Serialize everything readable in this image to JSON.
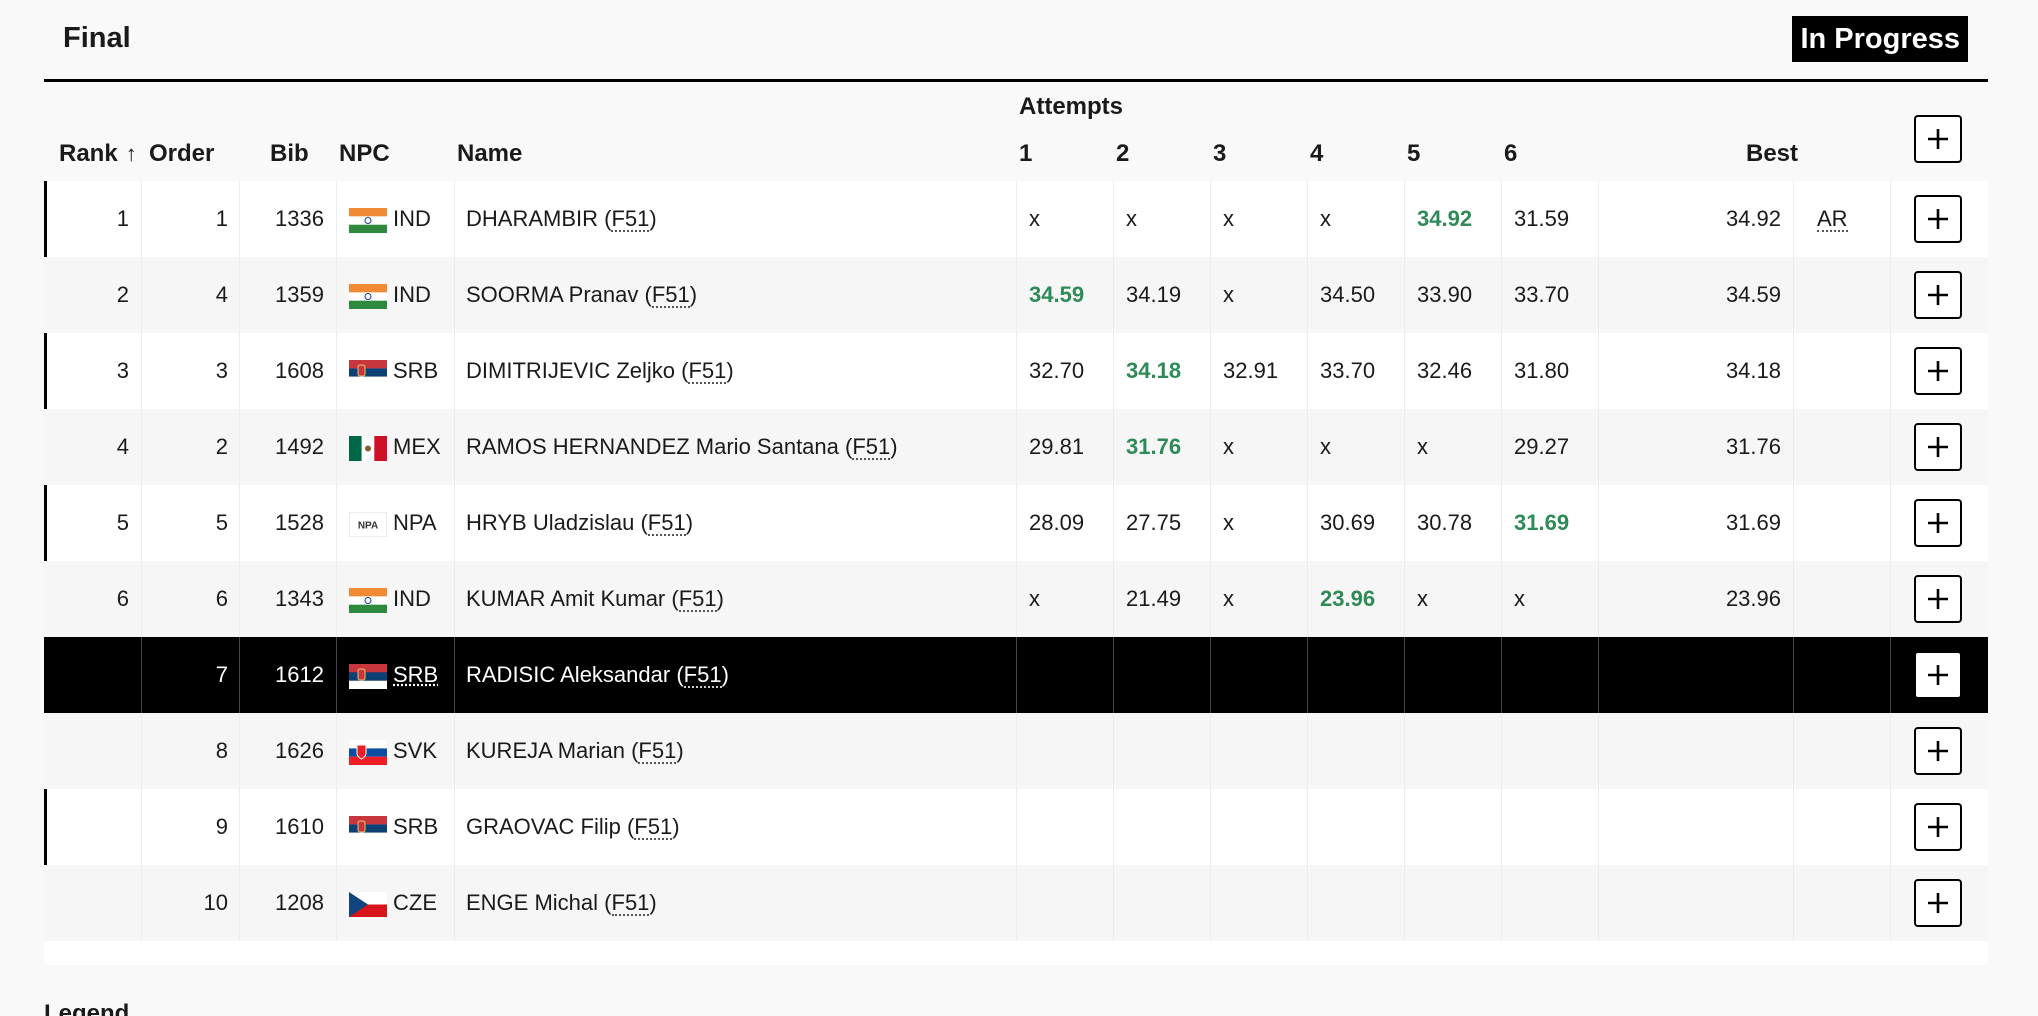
{
  "event": {
    "round": "Final",
    "status": "In Progress"
  },
  "columns": {
    "attempts_group": "Attempts",
    "rank": "Rank",
    "order": "Order",
    "bib": "Bib",
    "npc": "NPC",
    "name": "Name",
    "a1": "1",
    "a2": "2",
    "a3": "3",
    "a4": "4",
    "a5": "5",
    "a6": "6",
    "best": "Best"
  },
  "rows": [
    {
      "rank": "1",
      "order": "1",
      "bib": "1336",
      "flag": "IND",
      "npc": "IND",
      "name": "DHARAMBIR",
      "class": "F51",
      "attempts": [
        "x",
        "x",
        "x",
        "x",
        "34.92",
        "31.59"
      ],
      "best_index": 4,
      "best": "34.92",
      "record": "AR"
    },
    {
      "rank": "2",
      "order": "4",
      "bib": "1359",
      "flag": "IND",
      "npc": "IND",
      "name": "SOORMA Pranav",
      "class": "F51",
      "attempts": [
        "34.59",
        "34.19",
        "x",
        "34.50",
        "33.90",
        "33.70"
      ],
      "best_index": 0,
      "best": "34.59",
      "record": ""
    },
    {
      "rank": "3",
      "order": "3",
      "bib": "1608",
      "flag": "SRB",
      "npc": "SRB",
      "name": "DIMITRIJEVIC Zeljko",
      "class": "F51",
      "attempts": [
        "32.70",
        "34.18",
        "32.91",
        "33.70",
        "32.46",
        "31.80"
      ],
      "best_index": 1,
      "best": "34.18",
      "record": ""
    },
    {
      "rank": "4",
      "order": "2",
      "bib": "1492",
      "flag": "MEX",
      "npc": "MEX",
      "name": "RAMOS HERNANDEZ Mario Santana",
      "class": "F51",
      "attempts": [
        "29.81",
        "31.76",
        "x",
        "x",
        "x",
        "29.27"
      ],
      "best_index": 1,
      "best": "31.76",
      "record": ""
    },
    {
      "rank": "5",
      "order": "5",
      "bib": "1528",
      "flag": "NPA",
      "flag_text": "NPA",
      "npc": "NPA",
      "name": "HRYB Uladzislau",
      "class": "F51",
      "attempts": [
        "28.09",
        "27.75",
        "x",
        "30.69",
        "30.78",
        "31.69"
      ],
      "best_index": 5,
      "best": "31.69",
      "record": ""
    },
    {
      "rank": "6",
      "order": "6",
      "bib": "1343",
      "flag": "IND",
      "npc": "IND",
      "name": "KUMAR Amit Kumar",
      "class": "F51",
      "attempts": [
        "x",
        "21.49",
        "x",
        "23.96",
        "x",
        "x"
      ],
      "best_index": 3,
      "best": "23.96",
      "record": ""
    },
    {
      "rank": "",
      "order": "7",
      "bib": "1612",
      "flag": "SRB",
      "npc": "SRB",
      "name": "RADISIC Aleksandar",
      "class": "F51",
      "attempts": [
        "",
        "",
        "",
        "",
        "",
        ""
      ],
      "best_index": -1,
      "best": "",
      "record": "",
      "current": true
    },
    {
      "rank": "",
      "order": "8",
      "bib": "1626",
      "flag": "SVK",
      "npc": "SVK",
      "name": "KUREJA Marian",
      "class": "F51",
      "attempts": [
        "",
        "",
        "",
        "",
        "",
        ""
      ],
      "best_index": -1,
      "best": "",
      "record": ""
    },
    {
      "rank": "",
      "order": "9",
      "bib": "1610",
      "flag": "SRB",
      "npc": "SRB",
      "name": "GRAOVAC Filip",
      "class": "F51",
      "attempts": [
        "",
        "",
        "",
        "",
        "",
        ""
      ],
      "best_index": -1,
      "best": "",
      "record": ""
    },
    {
      "rank": "",
      "order": "10",
      "bib": "1208",
      "flag": "CZE",
      "npc": "CZE",
      "name": "ENGE Michal",
      "class": "F51",
      "attempts": [
        "",
        "",
        "",
        "",
        "",
        ""
      ],
      "best_index": -1,
      "best": "",
      "record": ""
    }
  ],
  "legend": {
    "title": "Legend"
  },
  "colors": {
    "best_mark": "#2e8b57",
    "current_row": "#000000"
  }
}
